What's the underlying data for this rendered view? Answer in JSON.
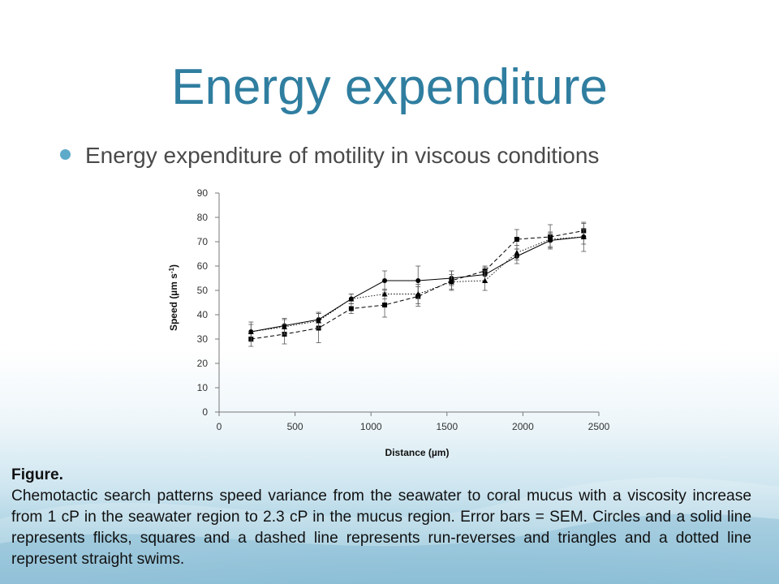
{
  "slide": {
    "title": "Energy expenditure",
    "bullet": "Energy expenditure of motility in viscous conditions"
  },
  "caption": {
    "heading": "Figure.",
    "body": "Chemotactic search patterns speed variance from the seawater to coral mucus with a viscosity increase from 1 cP in the seawater region to 2.3 cP in the mucus region. Error bars = SEM. Circles and a solid line represents flicks, squares and a dashed line represents run-reverses and triangles and a dotted line represent straight swims."
  },
  "colors": {
    "title": "#2f7ea0",
    "bullet": "#5eaac9",
    "text": "#4a4a4a"
  },
  "chart_data": {
    "type": "line",
    "title": "",
    "xlabel": "Distance (µm)",
    "ylabel_main": "Speed (µm s",
    "ylabel_sup": "-1",
    "ylabel_end": ")",
    "xlim": [
      0,
      2500
    ],
    "ylim": [
      0,
      90
    ],
    "x_ticks": [
      "0",
      "500",
      "1000",
      "1500",
      "2000",
      "2500"
    ],
    "y_ticks": [
      "0",
      "10",
      "20",
      "30",
      "40",
      "50",
      "60",
      "70",
      "80",
      "90"
    ],
    "grid": false,
    "legend": "none",
    "series": [
      {
        "marker": "circle",
        "line": "solid",
        "x": [
          210,
          430,
          655,
          870,
          1090,
          1310,
          1530,
          1750,
          1960,
          2180,
          2400
        ],
        "y": [
          33,
          35.5,
          38,
          46.5,
          54,
          54,
          55,
          56.5,
          64,
          70.5,
          72
        ],
        "err": [
          3,
          3,
          3,
          2,
          4,
          6,
          3,
          3,
          3,
          3,
          6
        ]
      },
      {
        "marker": "square",
        "line": "dashed",
        "x": [
          210,
          430,
          655,
          870,
          1090,
          1310,
          1530,
          1750,
          1960,
          2180,
          2400
        ],
        "y": [
          30,
          32,
          34.5,
          42.5,
          44,
          47.5,
          54,
          58,
          71,
          72,
          74.5
        ],
        "err": [
          3,
          4,
          6,
          2,
          5,
          4,
          4,
          2,
          4,
          5,
          3
        ]
      },
      {
        "marker": "triangle",
        "line": "dotted",
        "x": [
          210,
          430,
          655,
          870,
          1090,
          1310,
          1530,
          1750,
          1960,
          2180,
          2400
        ],
        "y": [
          33,
          35,
          37.5,
          46.5,
          48.5,
          48.5,
          53.5,
          54,
          65.5,
          71,
          72
        ],
        "err": [
          4,
          3,
          3,
          2,
          2,
          4,
          3,
          4,
          3,
          3,
          3
        ]
      }
    ]
  }
}
